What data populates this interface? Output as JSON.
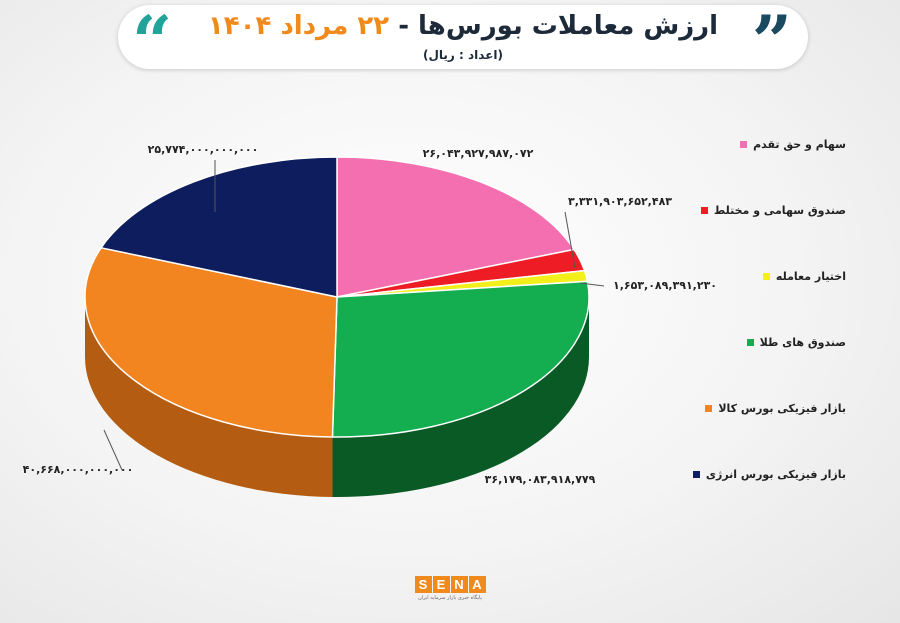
{
  "header": {
    "title_main": "ارزش معاملات بورس‌ها - ",
    "title_date": "۲۲ مرداد ۱۴۰۴",
    "subtitle": "(اعداد : ریال)",
    "quote_left": "“",
    "quote_right": "”"
  },
  "chart_data": {
    "type": "pie",
    "title": "ارزش معاملات بورس‌ها - ۲۲ مرداد ۱۴۰۴",
    "subtitle": "(اعداد : ریال)",
    "legend_position": "right",
    "slices": [
      {
        "name": "سهام و حق تقدم",
        "value": 26043927987072,
        "label": "۲۶,۰۴۳,۹۲۷,۹۸۷,۰۷۲",
        "color": "#f46fb0",
        "side": "#b04a80"
      },
      {
        "name": "صندوق سهامی و مختلط",
        "value": 3331903652483,
        "label": "۳,۳۳۱,۹۰۳,۶۵۲,۴۸۳",
        "color": "#ee1c25",
        "side": "#9a1015"
      },
      {
        "name": "اختیار معامله",
        "value": 1653089391230,
        "label": "۱,۶۵۳,۰۸۹,۳۹۱,۲۳۰",
        "color": "#f3ef1b",
        "side": "#a9a512"
      },
      {
        "name": "صندوق های طلا",
        "value": 36179083918779,
        "label": "۳۶,۱۷۹,۰۸۳,۹۱۸,۷۷۹",
        "color": "#14ad4f",
        "side": "#0a5a25"
      },
      {
        "name": "بازار فیزیکی بورس کالا",
        "value": 40668000000000,
        "label": "۴۰,۶۶۸,۰۰۰,۰۰۰,۰۰۰",
        "color": "#f28520",
        "side": "#b35c12"
      },
      {
        "name": "بازار فیزیکی بورس انرژی",
        "value": 25774000000000,
        "label": "۲۵,۷۷۴,۰۰۰,۰۰۰,۰۰۰",
        "color": "#0e1d5e",
        "side": "#081238"
      }
    ]
  },
  "footer": {
    "logo_letters": [
      "S",
      "E",
      "N",
      "A"
    ],
    "logo_caption": "پایگاه خبری بازار سرمایه ایران"
  }
}
